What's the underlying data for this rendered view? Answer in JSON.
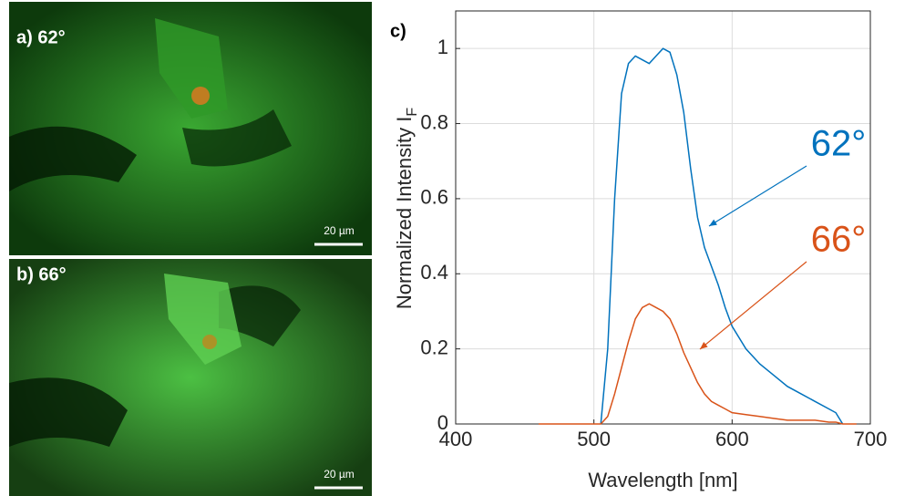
{
  "panels": {
    "a": {
      "label": "a) 62°",
      "scale_bar": "20 µm"
    },
    "b": {
      "label": "b) 66°",
      "scale_bar": "20 µm"
    },
    "c": {
      "label": "c)"
    }
  },
  "chart_data": {
    "type": "line",
    "xlabel": "Wavelength [nm]",
    "ylabel": "Normalized Intensity I",
    "ylabel_subscript": "F",
    "x": [
      460,
      480,
      500,
      505,
      510,
      515,
      520,
      525,
      530,
      535,
      540,
      545,
      550,
      555,
      560,
      565,
      570,
      575,
      580,
      585,
      590,
      595,
      600,
      610,
      620,
      630,
      640,
      650,
      660,
      670,
      675,
      680,
      690
    ],
    "series": [
      {
        "name": "62°",
        "color": "#0072bd",
        "values": [
          null,
          null,
          null,
          0,
          0.2,
          0.6,
          0.88,
          0.96,
          0.98,
          0.97,
          0.96,
          0.98,
          1.0,
          0.99,
          0.93,
          0.83,
          0.68,
          0.55,
          0.47,
          0.42,
          0.37,
          0.31,
          0.26,
          0.2,
          0.16,
          0.13,
          0.1,
          0.08,
          0.06,
          0.04,
          0.03,
          0,
          null
        ]
      },
      {
        "name": "66°",
        "color": "#d95319",
        "values": [
          0,
          0,
          0,
          0,
          0.02,
          0.08,
          0.15,
          0.22,
          0.28,
          0.31,
          0.32,
          0.31,
          0.3,
          0.28,
          0.24,
          0.19,
          0.15,
          0.11,
          0.08,
          0.06,
          0.05,
          0.04,
          0.03,
          0.025,
          0.02,
          0.015,
          0.01,
          0.01,
          0.01,
          0.005,
          0.005,
          0,
          0
        ]
      }
    ],
    "xlim": [
      400,
      700
    ],
    "xticks": [
      400,
      500,
      600,
      700
    ],
    "ylim": [
      0,
      1.1
    ],
    "yticks": [
      0,
      0.2,
      0.4,
      0.6,
      0.8,
      1
    ],
    "grid": true
  }
}
